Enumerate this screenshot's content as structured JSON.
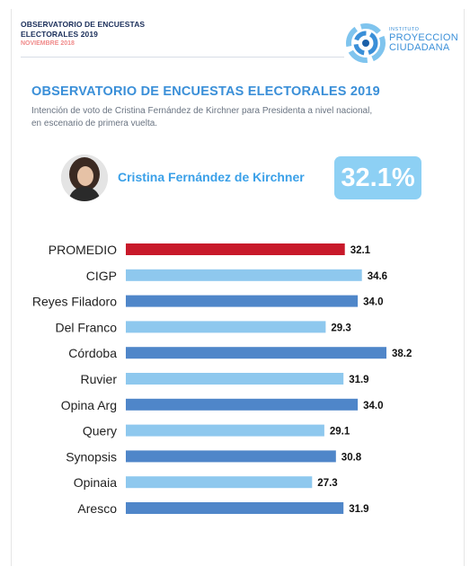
{
  "header": {
    "line1": "OBSERVATORIO DE ENCUESTAS",
    "line2": "ELECTORALES 2019",
    "date": "NOVIEMBRE 2018"
  },
  "logo": {
    "small": "INSTITUTO",
    "line1": "PROYECCION",
    "line2": "CIUDADANA",
    "icon": "spiral-logo-icon"
  },
  "candidate": {
    "name": "Cristina Fernández de Kirchner",
    "headline_value": "32.1%"
  },
  "colors": {
    "average": "#c8192a",
    "light": "#8ec8ee",
    "dark": "#4f86c9",
    "title": "#3a8fd8"
  },
  "chart_data": {
    "type": "bar",
    "orientation": "horizontal",
    "title": "OBSERVATORIO DE ENCUESTAS ELECTORALES 2019",
    "subtitle": "Intención de voto de Cristina Fernández de Kirchner para Presidenta a nivel nacional, en escenario de primera vuelta.",
    "xlabel": "",
    "ylabel": "",
    "xlim": [
      0,
      40
    ],
    "grid": false,
    "categories": [
      "PROMEDIO",
      "CIGP",
      "Reyes Filadoro",
      "Del Franco",
      "Córdoba",
      "Ruvier",
      "Opina Arg",
      "Query",
      "Synopsis",
      "Opinaia",
      "Aresco"
    ],
    "values": [
      32.1,
      34.6,
      34.0,
      29.3,
      38.2,
      31.9,
      34.0,
      29.1,
      30.8,
      27.3,
      31.9
    ],
    "value_labels": [
      "32.1",
      "34.6",
      "34.0",
      "29.3",
      "38.2",
      "31.9",
      "34.0",
      "29.1",
      "30.8",
      "27.3",
      "31.9"
    ],
    "bar_colors": [
      "average",
      "light",
      "dark",
      "light",
      "dark",
      "light",
      "dark",
      "light",
      "dark",
      "light",
      "dark"
    ]
  }
}
